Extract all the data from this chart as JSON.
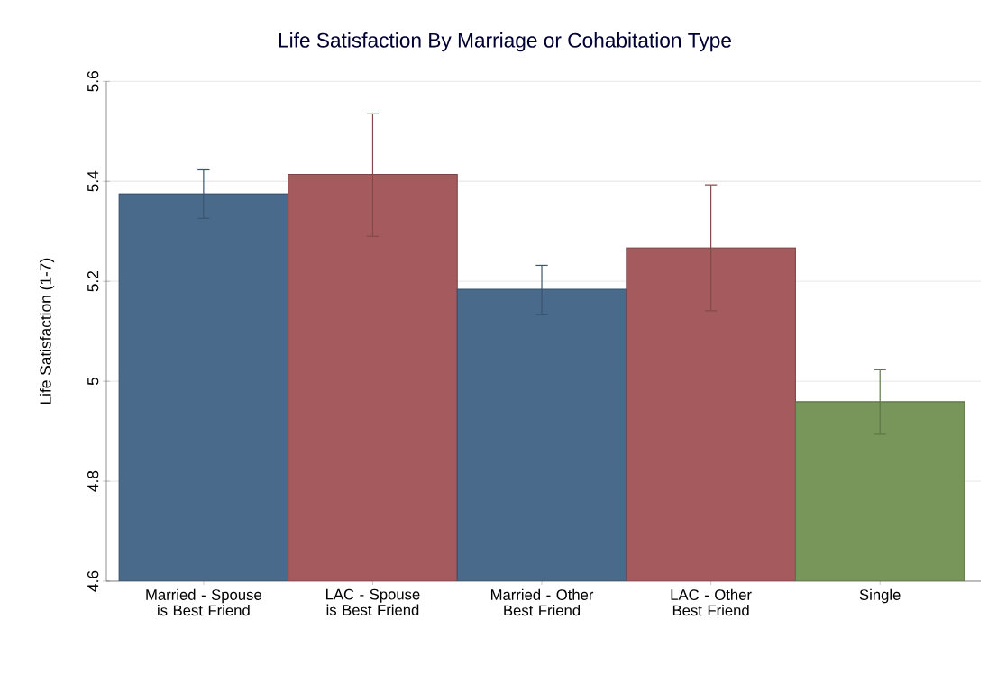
{
  "chart_data": {
    "type": "bar",
    "title": "Life Satisfaction By Marriage or Cohabitation Type",
    "ylabel": "Life Satisfaction (1-7)",
    "categories": [
      "Married - Spouse is Best Friend",
      "LAC - Spouse is Best Friend",
      "Married - Other Best Friend",
      "LAC - Other Best Friend",
      "Single"
    ],
    "values": [
      5.375,
      5.414,
      5.184,
      5.267,
      4.959
    ],
    "colors": [
      "#4a6a8c",
      "#a55b5e",
      "#4a6a8c",
      "#a55b5e",
      "#78955a"
    ],
    "errors": [
      [
        5.326,
        5.423
      ],
      [
        5.29,
        5.535
      ],
      [
        5.133,
        5.232
      ],
      [
        5.141,
        5.393
      ],
      [
        4.894,
        5.023
      ]
    ],
    "ylim": [
      4.6,
      5.6
    ],
    "yticks": [
      4.6,
      4.8,
      5,
      5.2,
      5.4,
      5.6
    ],
    "grid": "y"
  }
}
